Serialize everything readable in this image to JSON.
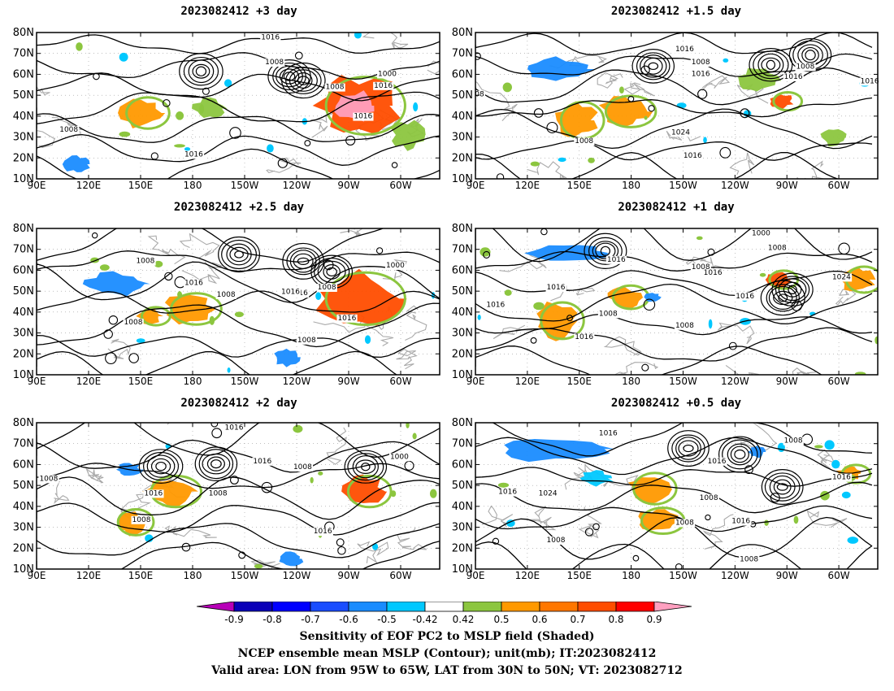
{
  "panels": [
    {
      "id": "p1",
      "title": "2023082412 +3 day",
      "contour_labels": [
        "1016",
        "1008",
        "1000",
        "1008",
        "1016",
        "1016",
        "1008",
        "1016"
      ]
    },
    {
      "id": "p2",
      "title": "2023082412 +1.5 day",
      "contour_labels": [
        "1016",
        "1008",
        "1016",
        "1008",
        "1016",
        "1016",
        "1024",
        "1008",
        "1016",
        "08"
      ]
    },
    {
      "id": "p3",
      "title": "2023082412 +2.5 day",
      "contour_labels": [
        "1008",
        "1016",
        "1008",
        "1016",
        "1008",
        "1000",
        "1016",
        "1016",
        "1008",
        "1008"
      ]
    },
    {
      "id": "p4",
      "title": "2023082412 +1 day",
      "contour_labels": [
        "1000",
        "1008",
        "1016",
        "1008",
        "1016",
        "1016",
        "1016",
        "1024",
        "1008",
        "1016",
        "1008",
        "1016"
      ]
    },
    {
      "id": "p5",
      "title": "2023082412 +2 day",
      "contour_labels": [
        "1016",
        "1016",
        "1008",
        "1000",
        "1008",
        "1016",
        "1008",
        "1016",
        "1008"
      ]
    },
    {
      "id": "p6",
      "title": "2023082412 +0.5 day",
      "contour_labels": [
        "1016",
        "1008",
        "1016",
        "1016",
        "1016",
        "1008",
        "1024",
        "1008",
        "1008",
        "1008",
        "1016"
      ]
    }
  ],
  "lat_labels": [
    "80N",
    "70N",
    "60N",
    "50N",
    "40N",
    "30N",
    "20N",
    "10N"
  ],
  "lon_labels": [
    "90E",
    "120E",
    "150E",
    "180",
    "150W",
    "120W",
    "90W",
    "60W"
  ],
  "colorbar": {
    "colors": [
      "#b800b8",
      "#0a00b8",
      "#0000ff",
      "#1a4dff",
      "#1a8cff",
      "#00c8ff",
      "#ffffff",
      "#8cc63f",
      "#ff9900",
      "#ff7700",
      "#ff4d00",
      "#ff0000",
      "#ffa0c0"
    ],
    "labels": [
      "-0.9",
      "-0.8",
      "-0.7",
      "-0.6",
      "-0.5",
      "-0.42",
      "0.42",
      "0.5",
      "0.6",
      "0.7",
      "0.8",
      "0.9"
    ]
  },
  "caption": {
    "line1": "Sensitivity of EOF PC2 to MSLP field (Shaded)",
    "line2": "NCEP ensemble mean MSLP (Contour); unit(mb); IT:2023082412",
    "line3": "Valid area: LON from 95W to 65W, LAT from 30N to 50N; VT: 2023082712"
  }
}
